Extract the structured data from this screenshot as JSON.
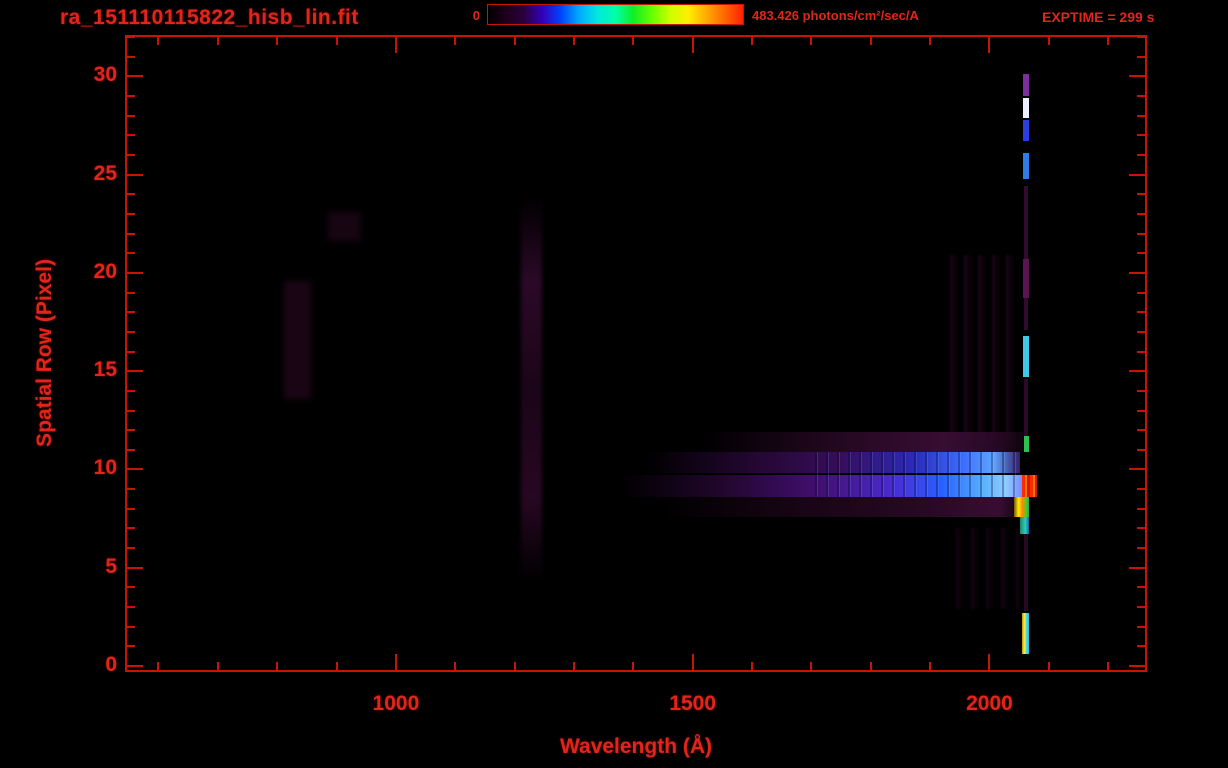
{
  "header": {
    "title": "ra_151110115822_hisb_lin.fit",
    "exptime": "EXPTIME = 299 s",
    "colorbar": {
      "min_label": "0",
      "max_label": "483.426 photons/cm²/sec/A",
      "stops": [
        "#000000",
        "#20001c",
        "#2a0040",
        "#3300bb",
        "#0044ff",
        "#00aaff",
        "#00e8e0",
        "#00ffaa",
        "#11ee22",
        "#66ff00",
        "#ccff00",
        "#ffee00",
        "#ffaa00",
        "#ff6600",
        "#ff2200"
      ]
    }
  },
  "colors": {
    "text_red": "#e1251b",
    "axis_red": "#c81400",
    "background": "#000000"
  },
  "chart_data": {
    "type": "heatmap",
    "title": "ra_151110115822_hisb_lin.fit",
    "xlabel": "Wavelength (Å)",
    "ylabel": "Spatial Row (Pixel)",
    "xlim": [
      547,
      2262
    ],
    "ylim": [
      -0.2,
      32.0
    ],
    "x_major_ticks": [
      1000,
      1500,
      2000
    ],
    "x_minor_tick_interval": 100,
    "y_major_ticks": [
      0,
      5,
      10,
      15,
      20,
      25,
      30
    ],
    "y_minor_tick_interval": 1,
    "colorbar_range": [
      0,
      483.426
    ],
    "colorbar_units": "photons/cm²/sec/A",
    "exposure_time_s": 299,
    "grid": false,
    "features": [
      {
        "name": "lyman-alpha-vertical-band",
        "x1": 1210,
        "x2": 1246,
        "row1": 4.2,
        "row2": 23.9,
        "blur": 2,
        "css": "linear-gradient(180deg, rgba(40,8,36,0) 0%, rgba(48,10,44,0.9) 22%, rgba(36,7,32,0.75) 50%, rgba(46,9,40,0.85) 78%, rgba(40,8,36,0) 100%)"
      },
      {
        "name": "faint-smudge-900",
        "x1": 886,
        "x2": 941,
        "row1": 21.6,
        "row2": 23.1,
        "blur": 3,
        "css": "rgba(26,5,20,0.9)"
      },
      {
        "name": "faint-strip-830",
        "x1": 812,
        "x2": 857,
        "row1": 13.6,
        "row2": 19.6,
        "blur": 3,
        "css": "rgba(30,6,24,0.85)"
      },
      {
        "name": "faint-striation-field-1960",
        "x1": 1923,
        "x2": 2049,
        "row1": 11.5,
        "row2": 20.9,
        "blur": 1,
        "css": "repeating-linear-gradient(90deg, rgba(22,4,18,0) 0px 6px, rgba(32,6,28,0.8) 6px 9px, rgba(18,3,14,0.5) 9px 14px)"
      },
      {
        "name": "faint-striation-field-lower",
        "x1": 1931,
        "x2": 2050,
        "row1": 2.9,
        "row2": 7.0,
        "blur": 1,
        "css": "repeating-linear-gradient(90deg, rgba(20,4,16,0) 0px 7px, rgba(28,5,24,0.7) 7px 10px, rgba(16,3,12,0.4) 10px 15px)"
      },
      {
        "name": "streak-row11",
        "x1": 1512,
        "x2": 2062,
        "row1": 10.9,
        "row2": 11.9,
        "css": "linear-gradient(90deg, rgba(30,6,28,0) 0%, rgba(44,10,40,0.85) 45%, rgba(58,14,54,0.95) 75%, rgba(42,9,38,0.9) 92%, rgba(20,4,18,0.6) 100%)"
      },
      {
        "name": "streak-row10",
        "x1": 1420,
        "x2": 2052,
        "row1": 9.8,
        "row2": 10.9,
        "css": "linear-gradient(90deg, rgba(20,4,24,0) 0%, rgba(40,8,56,0.9) 30%, rgba(58,14,96,0.95) 52%, rgba(45,45,195,0.95) 72%, rgba(60,110,255,1) 85%, rgba(95,165,255,1) 93%, rgba(60,30,110,0.95) 100%)"
      },
      {
        "name": "streak-row9-brightest",
        "x1": 1378,
        "x2": 2054,
        "row1": 8.6,
        "row2": 9.7,
        "css": "linear-gradient(90deg, rgba(16,3,20,0) 0%, rgba(36,7,48,0.9) 25%, rgba(70,16,120,0.95) 50%, rgba(75,45,215,0.98) 68%, rgba(40,95,255,1) 80%, rgba(85,175,255,1) 90%, rgba(145,205,255,1) 96%, rgba(120,140,255,1) 100%)"
      },
      {
        "name": "streak-striation-overlay",
        "x1": 1700,
        "x2": 2052,
        "row1": 8.6,
        "row2": 10.9,
        "css": "repeating-linear-gradient(90deg, rgba(0,0,0,0) 0px 4px, rgba(0,0,40,0.3) 4px 6px, rgba(130,200,255,0.18) 6px 7px, rgba(0,0,0,0) 7px 11px)"
      },
      {
        "name": "streak-red-tip",
        "x1": 2054,
        "x2": 2080,
        "row1": 8.6,
        "row2": 9.7,
        "css": "repeating-linear-gradient(90deg, #ff2a00 0px 3px, #ff7700 3px 5px, #cc1a00 5px 8px)"
      },
      {
        "name": "streak-row8",
        "x1": 1445,
        "x2": 2046,
        "row1": 7.6,
        "row2": 8.6,
        "css": "linear-gradient(90deg, rgba(18,3,16,0) 0%, rgba(30,6,26,0.8) 40%, rgba(44,10,40,0.9) 75%, rgba(58,14,52,0.95) 95%, rgba(30,6,26,0.8) 100%)"
      },
      {
        "name": "streak-row8-bright-tip",
        "x1": 2042,
        "x2": 2067,
        "row1": 7.6,
        "row2": 8.6,
        "css": "linear-gradient(90deg, #775500 0%, #ffee00 30%, #ff8800 55%, #55cc22 80%, #22aa66 100%)"
      },
      {
        "name": "row7-cyan-dash",
        "x1": 2052,
        "x2": 2067,
        "row1": 6.7,
        "row2": 7.6,
        "css": "linear-gradient(90deg, #1a8866, #33ccbb 60%, #1166aa)"
      },
      {
        "name": "emission-line-purple-top",
        "x1": 2057,
        "x2": 2067,
        "row1": 29.0,
        "row2": 30.1,
        "css": "#7b2f9e"
      },
      {
        "name": "emission-line-white-seg",
        "x1": 2057,
        "x2": 2067,
        "row1": 27.9,
        "row2": 28.9,
        "css": "#eef0ff"
      },
      {
        "name": "emission-line-blue-seg",
        "x1": 2057,
        "x2": 2067,
        "row1": 26.7,
        "row2": 27.8,
        "css": "#2a3fe0"
      },
      {
        "name": "emission-line-bluecyan-seg",
        "x1": 2057,
        "x2": 2067,
        "row1": 24.8,
        "row2": 26.1,
        "css": "#2e7de8"
      },
      {
        "name": "emission-line-faint-upper",
        "x1": 2058,
        "x2": 2065,
        "row1": 17.1,
        "row2": 24.4,
        "css": "rgba(58,14,52,0.85)"
      },
      {
        "name": "emission-line-purple-mid",
        "x1": 2057,
        "x2": 2066,
        "row1": 18.7,
        "row2": 20.7,
        "css": "#5a1450"
      },
      {
        "name": "emission-line-cyan-mid",
        "x1": 2057,
        "x2": 2067,
        "row1": 14.7,
        "row2": 16.8,
        "css": "#3fc8e8"
      },
      {
        "name": "emission-line-faint-lower",
        "x1": 2058,
        "x2": 2065,
        "row1": 10.9,
        "row2": 14.6,
        "css": "rgba(52,12,46,0.85)"
      },
      {
        "name": "emission-line-green-dash",
        "x1": 2058,
        "x2": 2066,
        "row1": 10.9,
        "row2": 11.7,
        "css": "#2fbf4f"
      },
      {
        "name": "emission-line-faint-bottom",
        "x1": 2058,
        "x2": 2065,
        "row1": 2.8,
        "row2": 6.7,
        "css": "rgba(50,11,44,0.8)"
      },
      {
        "name": "emission-line-bottom-bright",
        "x1": 2055,
        "x2": 2067,
        "row1": 0.6,
        "row2": 2.7,
        "css": "linear-gradient(90deg, #bb9900 0%, #ffee44 35%, #44ddee 65%, #22bbdd 100%)"
      }
    ]
  }
}
